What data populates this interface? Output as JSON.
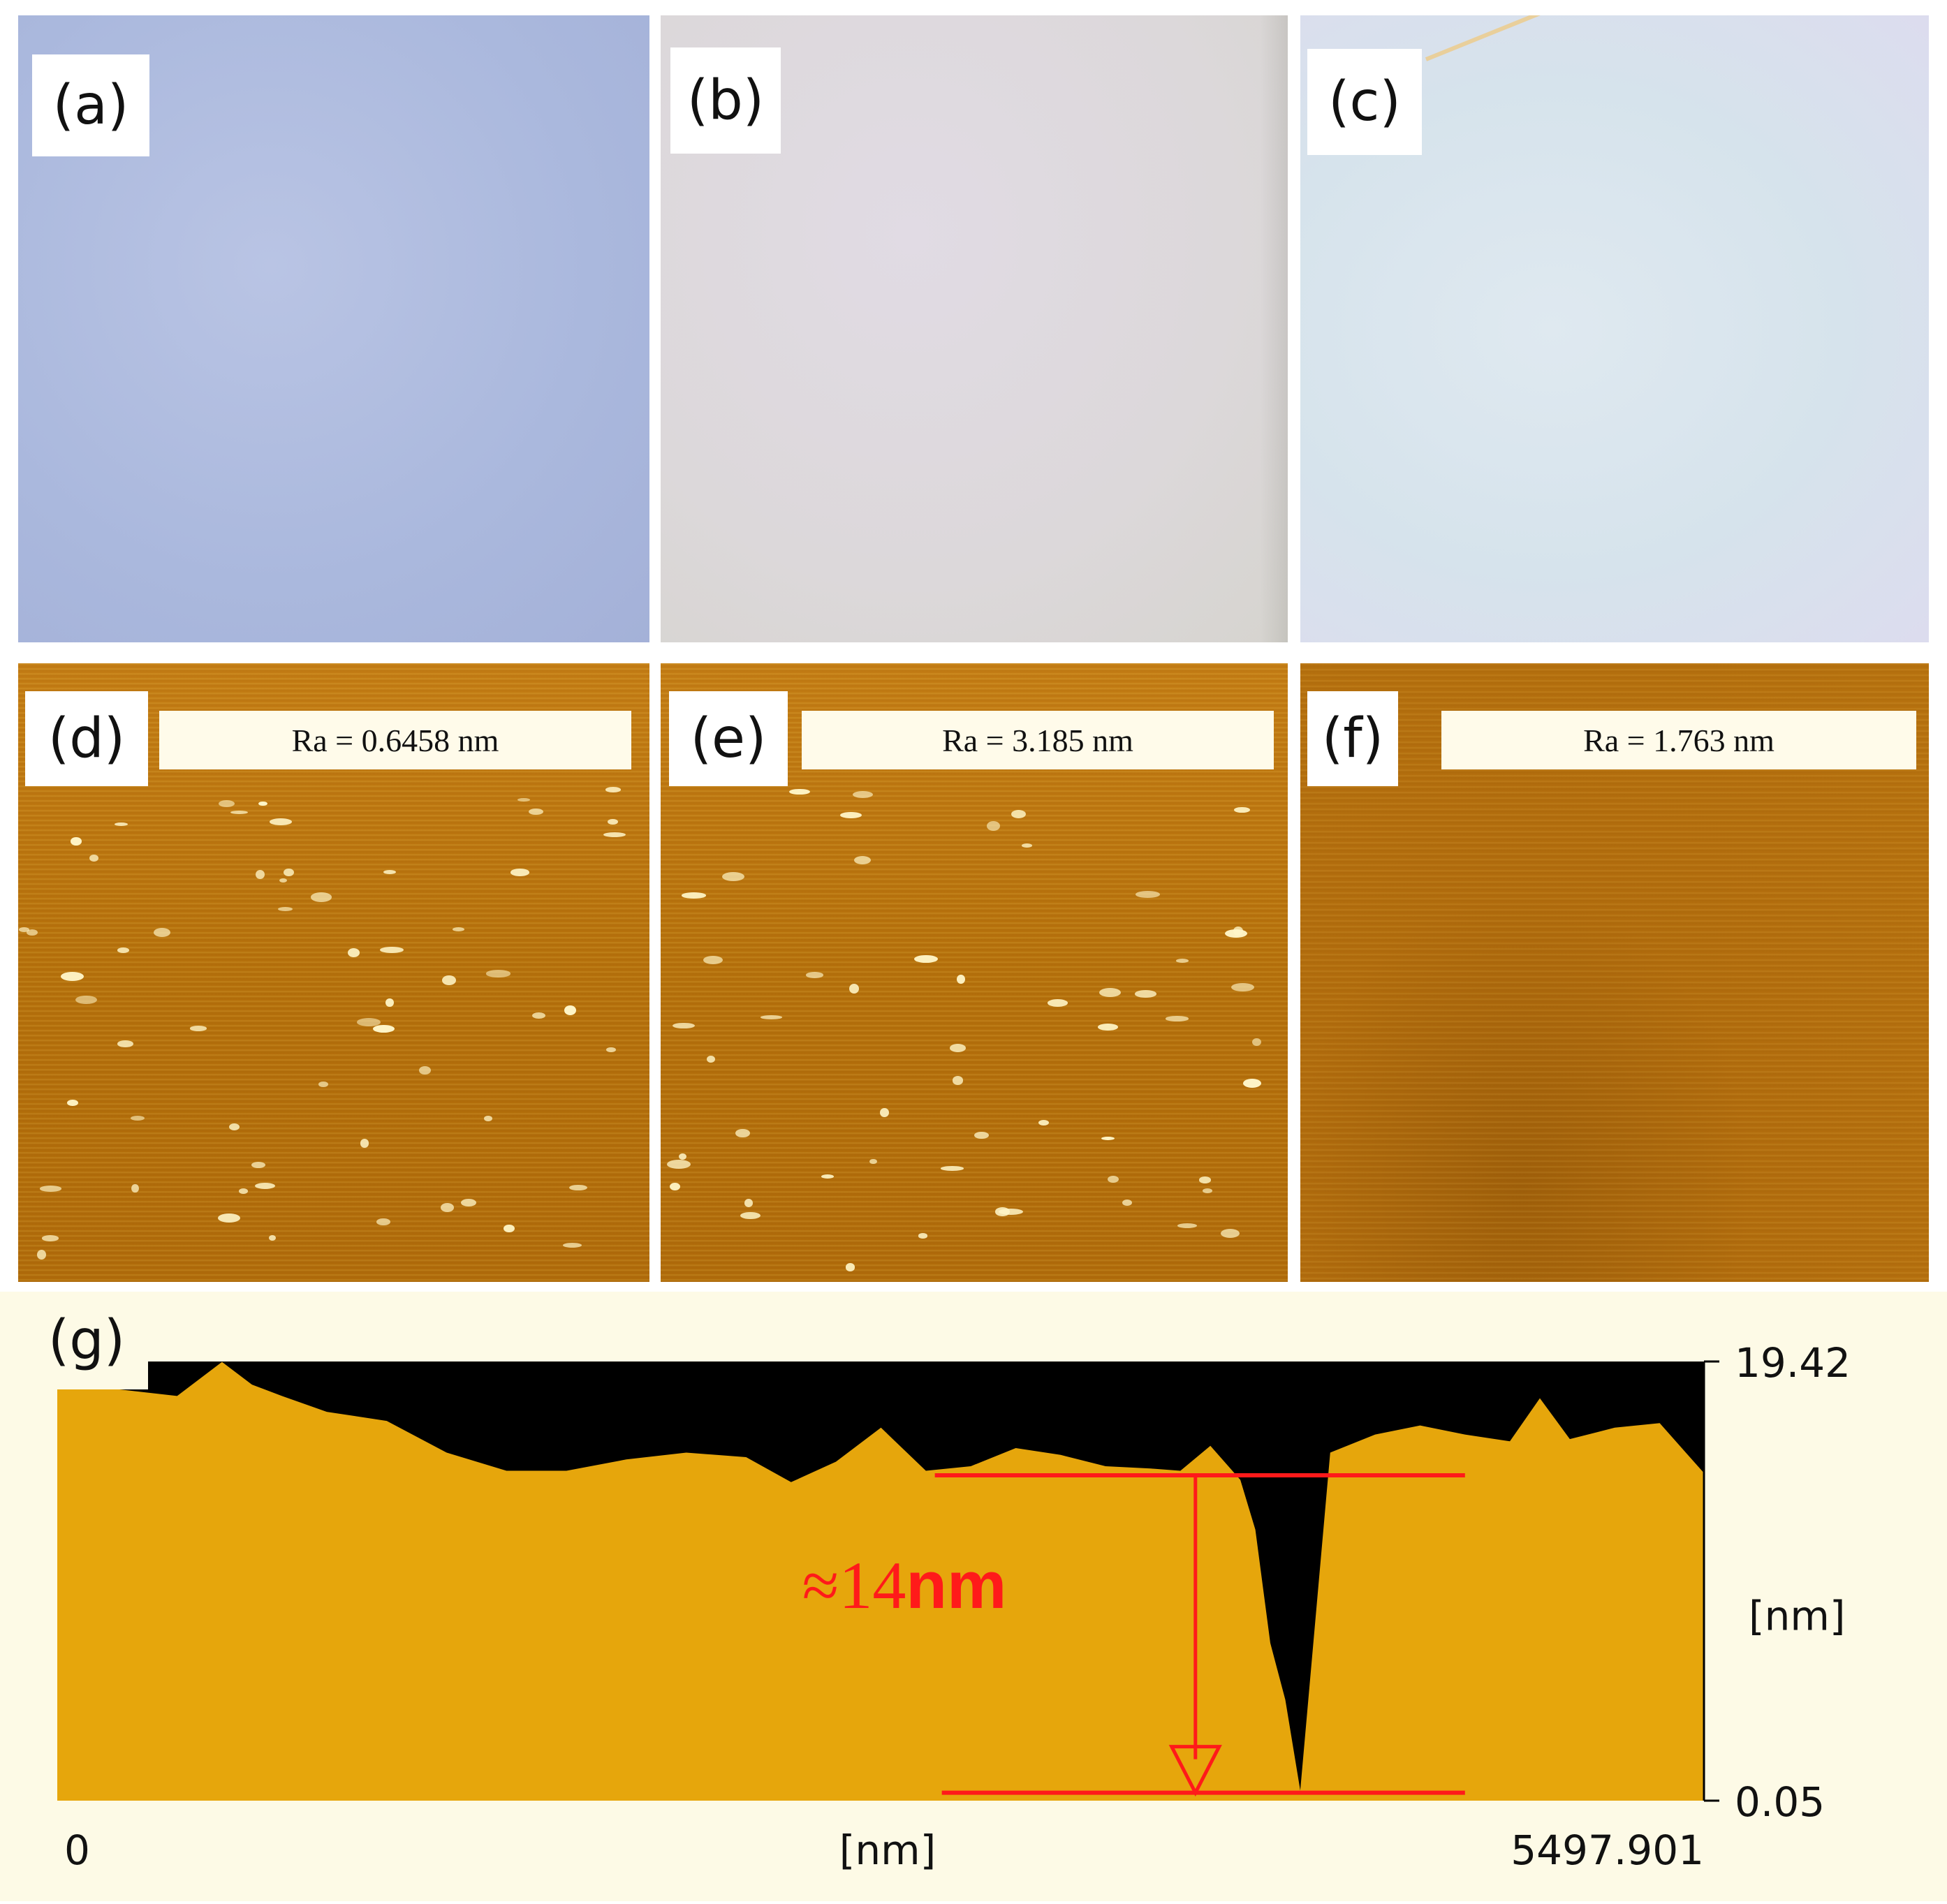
{
  "panels": {
    "a": {
      "label": "(a)"
    },
    "b": {
      "label": "(b)"
    },
    "c": {
      "label": "(c)"
    },
    "d": {
      "label": "(d)",
      "ra": "Ra = 0.6458 nm"
    },
    "e": {
      "label": "(e)",
      "ra": "Ra = 3.185 nm"
    },
    "f": {
      "label": "(f)",
      "ra": "Ra = 1.763 nm"
    },
    "g": {
      "label": "(g)"
    }
  },
  "chart_data": {
    "type": "area",
    "title": "",
    "xlabel": "[nm]",
    "ylabel": "[nm]",
    "xlim": [
      0,
      5497.901
    ],
    "ylim": [
      0.05,
      19.42
    ],
    "x_tick_labels": [
      "0",
      "[nm]",
      "5497.901"
    ],
    "y_tick_labels": [
      "19.42",
      "0.05"
    ],
    "annotation": {
      "text_prefix": "≈14",
      "text_unit": "nm",
      "value": 14
    },
    "series": [
      {
        "x": [
          0,
          200,
          400,
          550,
          650,
          750,
          900,
          1100,
          1300,
          1500,
          1700,
          1900,
          2100,
          2300,
          2450,
          2600,
          2750,
          2900,
          3050,
          3200,
          3350,
          3500,
          3650,
          3750,
          3850,
          3950,
          4000,
          4050,
          4100,
          4150,
          4250,
          4400,
          4550,
          4700,
          4850,
          4950,
          5050,
          5200,
          5350,
          5497.901
        ],
        "y": [
          18.5,
          18.2,
          17.9,
          19.4,
          18.4,
          17.9,
          17.2,
          16.8,
          15.4,
          14.6,
          14.6,
          15.1,
          15.4,
          15.2,
          14.1,
          15.0,
          16.5,
          14.6,
          14.8,
          15.6,
          15.3,
          14.8,
          14.7,
          14.6,
          15.7,
          14.2,
          12.0,
          7.0,
          4.5,
          0.5,
          15.4,
          16.2,
          16.6,
          16.2,
          15.9,
          17.8,
          16.0,
          16.5,
          16.7,
          14.5
        ]
      }
    ],
    "markers": {
      "upper_line_y": 14.4,
      "lower_line_y": 0.4,
      "x_range": [
        2930,
        4700
      ],
      "arrow_x": 3800
    }
  }
}
